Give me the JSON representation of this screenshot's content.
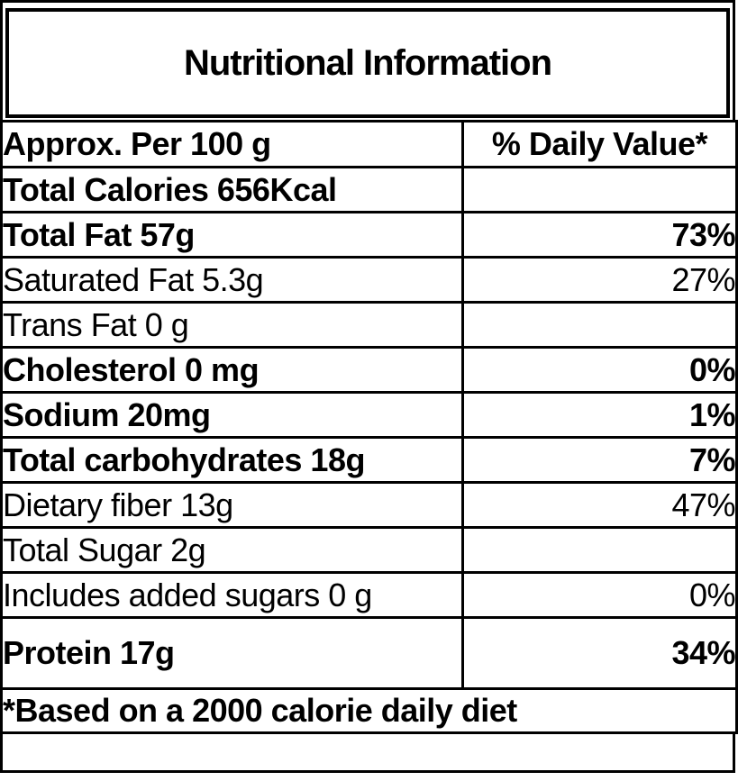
{
  "title": "Nutritional Information",
  "table": {
    "header": {
      "nutrient_col": "Approx. Per 100 g",
      "value_col": "% Daily Value*"
    },
    "rows": [
      {
        "label": "Total Calories 656Kcal",
        "value": "",
        "bold": true,
        "tall": false
      },
      {
        "label": "Total Fat 57g",
        "value": "73%",
        "bold": true,
        "tall": false
      },
      {
        "label": "Saturated Fat 5.3g",
        "value": "27%",
        "bold": false,
        "tall": false
      },
      {
        "label": "Trans Fat 0 g",
        "value": "",
        "bold": false,
        "tall": false
      },
      {
        "label": "Cholesterol 0 mg",
        "value": "0%",
        "bold": true,
        "tall": false
      },
      {
        "label": "Sodium 20mg",
        "value": "1%",
        "bold": true,
        "tall": false
      },
      {
        "label": "Total carbohydrates 18g",
        "value": "7%",
        "bold": true,
        "tall": false
      },
      {
        "label": "Dietary fiber 13g",
        "value": "47%",
        "bold": false,
        "tall": false
      },
      {
        "label": "Total Sugar 2g",
        "value": "",
        "bold": false,
        "tall": false
      },
      {
        "label": "Includes added sugars 0 g",
        "value": "0%",
        "bold": false,
        "tall": false
      },
      {
        "label": "Protein 17g",
        "value": "34%",
        "bold": true,
        "tall": true
      }
    ],
    "footnote": "*Based on a 2000 calorie daily diet"
  },
  "colors": {
    "border": "#000000",
    "text": "#000000",
    "background": "#ffffff"
  }
}
